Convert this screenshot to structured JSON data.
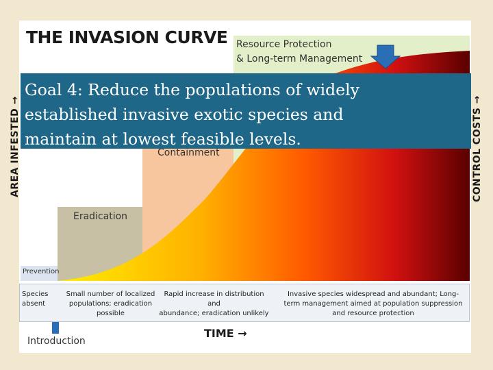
{
  "title": "THE INVASION CURVE",
  "stages": {
    "prevention": "Prevention",
    "eradication": "Eradication",
    "containment": "Containment",
    "resource_line1": "Resource Protection",
    "resource_line2": "& Long-term Management"
  },
  "axes": {
    "y_left": "AREA INFESTED →",
    "y_right": "CONTROL COSTS →",
    "x": "TIME →"
  },
  "descriptions": {
    "d1_l1": "Species",
    "d1_l2": "absent",
    "d2_l1": "Small number of localized",
    "d2_l2": "populations; eradication",
    "d2_l3": "possible",
    "d3_l1": "Rapid increase in distribution and",
    "d3_l2": "abundance; eradication unlikely",
    "d4_l1": "Invasive species widespread and abundant; Long-",
    "d4_l2": "term management aimed at population suppression",
    "d4_l3": "and resource protection"
  },
  "introduction": "Introduction",
  "goal": {
    "line1": "Goal 4: Reduce the populations of widely",
    "line2": "established invasive exotic species and",
    "line3": "maintain at lowest feasible levels."
  },
  "colors": {
    "background": "#f2e8cf",
    "banner": "#1f6788",
    "arrow": "#2a6fb5"
  }
}
